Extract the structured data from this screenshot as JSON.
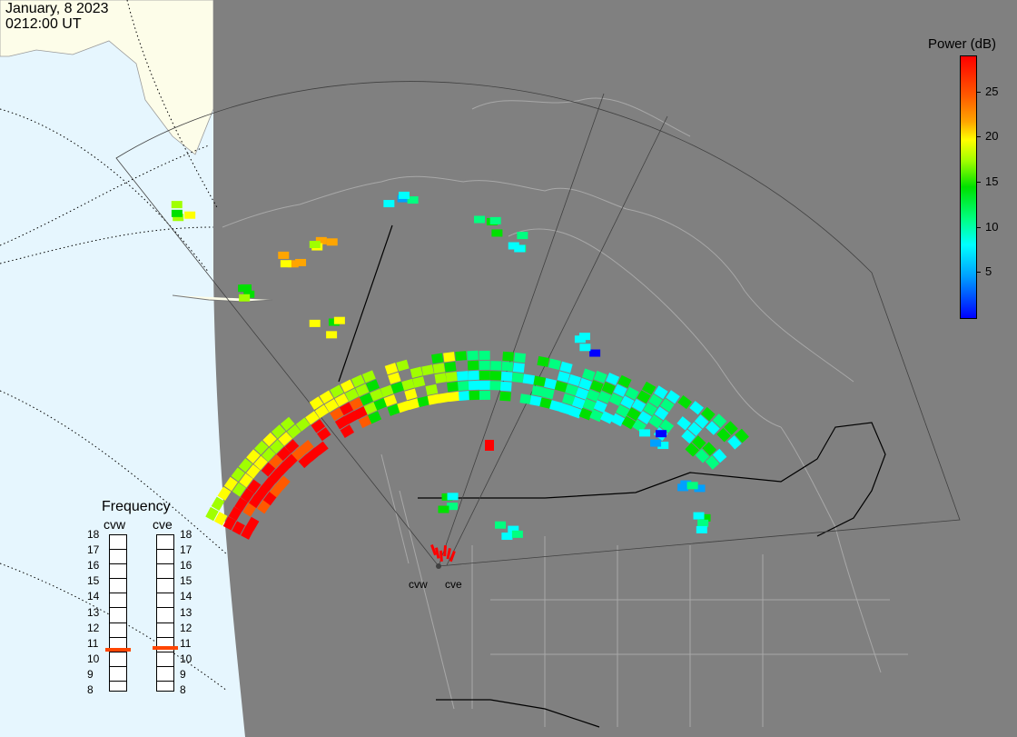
{
  "header": {
    "date": "January, 8 2023",
    "time": "0212:00 UT"
  },
  "colorbar": {
    "title": "Power (dB)",
    "min": 0,
    "max": 29,
    "ticks": [
      25,
      20,
      15,
      10,
      5
    ],
    "colors": [
      "#0000ff",
      "#00a0ff",
      "#00ffff",
      "#00ff80",
      "#00e000",
      "#a0ff00",
      "#ffff00",
      "#ffa500",
      "#ff5a00",
      "#ff0000"
    ]
  },
  "frequency_panel": {
    "title": "Frequency",
    "radars": [
      "cvw",
      "cve"
    ],
    "ticks": [
      18,
      17,
      16,
      15,
      14,
      13,
      12,
      11,
      10,
      9,
      8
    ],
    "range": [
      8,
      18
    ],
    "selected_mhz": {
      "cvw": 10.6,
      "cve": 10.7
    }
  },
  "map": {
    "colors": {
      "ocean": "#e6f6fe",
      "land_day": "#fdfde9",
      "night": "#808080",
      "borders": "#a8a8a8",
      "day_night_line": "#000000"
    },
    "sites": [
      {
        "code": "cvw",
        "lat": 43.27,
        "lon": -120.36
      },
      {
        "code": "cve",
        "lat": 43.27,
        "lon": -120.35
      }
    ]
  }
}
